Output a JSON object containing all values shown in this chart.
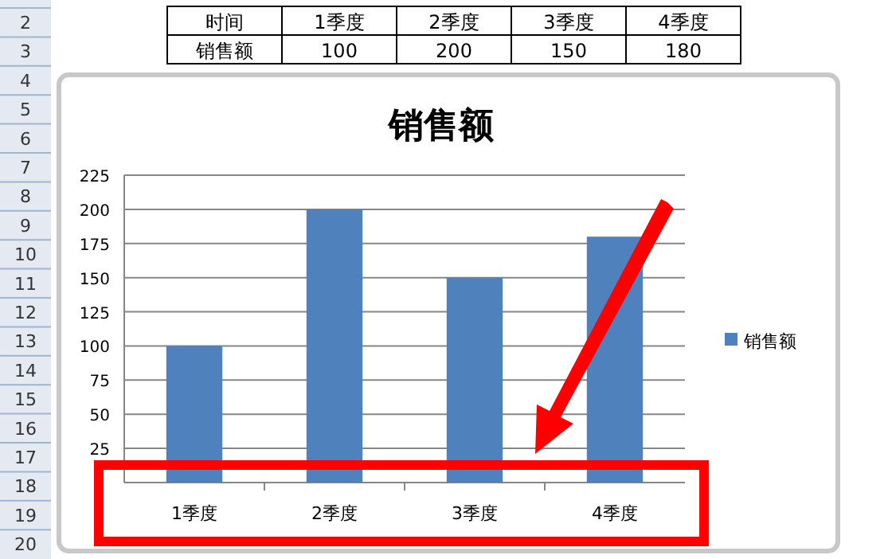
{
  "chart_data": {
    "type": "bar",
    "title": "销售额",
    "categories": [
      "1季度",
      "2季度",
      "3季度",
      "4季度"
    ],
    "series": [
      {
        "name": "销售额",
        "color": "#4f81bd",
        "values": [
          100,
          200,
          150,
          180
        ]
      }
    ],
    "ylim": [
      0,
      225
    ],
    "yticks": [
      25,
      50,
      75,
      100,
      125,
      150,
      175,
      200,
      225
    ],
    "grid": "y",
    "legend": "right",
    "annotations": [
      "时间",
      "100",
      "200",
      "150",
      "180",
      "2",
      "3",
      "4",
      "5",
      "6",
      "7",
      "8",
      "9",
      "10",
      "11",
      "12",
      "13",
      "14",
      "15",
      "16",
      "17",
      "18",
      "19",
      "20"
    ]
  }
}
